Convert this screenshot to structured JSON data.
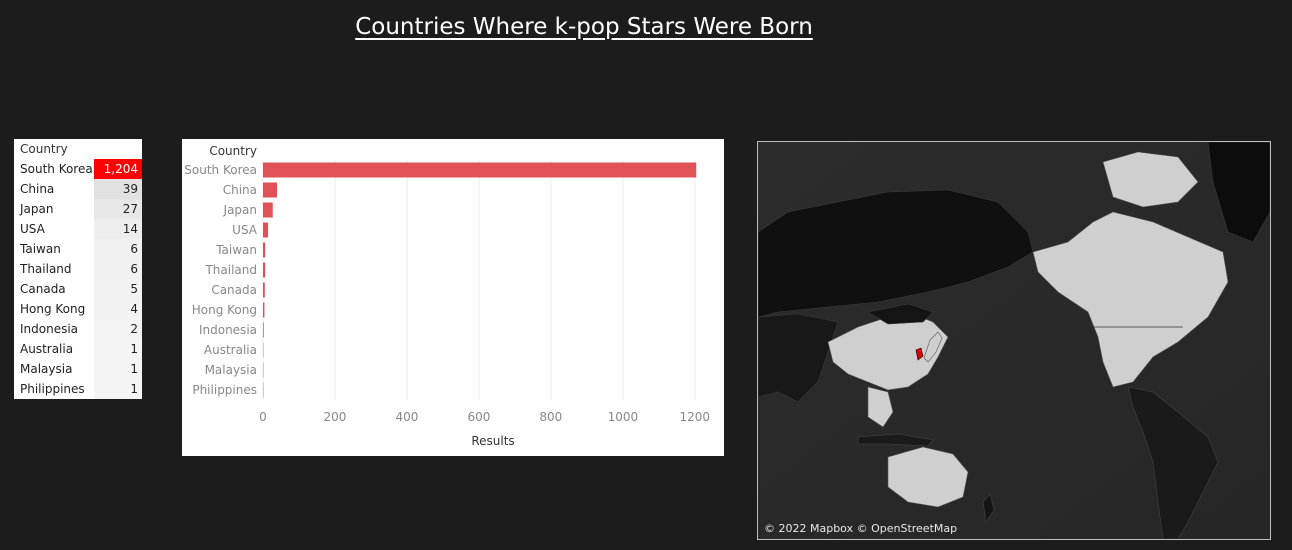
{
  "title": "Countries Where k-pop Stars Were Born",
  "colors": {
    "accent": "#ff0000",
    "bar": "#e05158"
  },
  "table": {
    "header": "Country"
  },
  "chart_data": {
    "type": "bar",
    "orientation": "horizontal",
    "categories": [
      "South Korea",
      "China",
      "Japan",
      "USA",
      "Taiwan",
      "Thailand",
      "Canada",
      "Hong Kong",
      "Indonesia",
      "Australia",
      "Malaysia",
      "Philippines"
    ],
    "values": [
      1204,
      39,
      27,
      14,
      6,
      6,
      5,
      4,
      2,
      1,
      1,
      1
    ],
    "value_labels": [
      "1,204",
      "39",
      "27",
      "14",
      "6",
      "6",
      "5",
      "4",
      "2",
      "1",
      "1",
      "1"
    ],
    "ylabel": "Country",
    "xlabel": "Results",
    "xlim": [
      0,
      1220
    ],
    "xticks": [
      0,
      200,
      400,
      600,
      800,
      1000,
      1200
    ],
    "grid": true
  },
  "map": {
    "credit": "© 2022 Mapbox © OpenStreetMap",
    "highlight": "South Korea"
  }
}
